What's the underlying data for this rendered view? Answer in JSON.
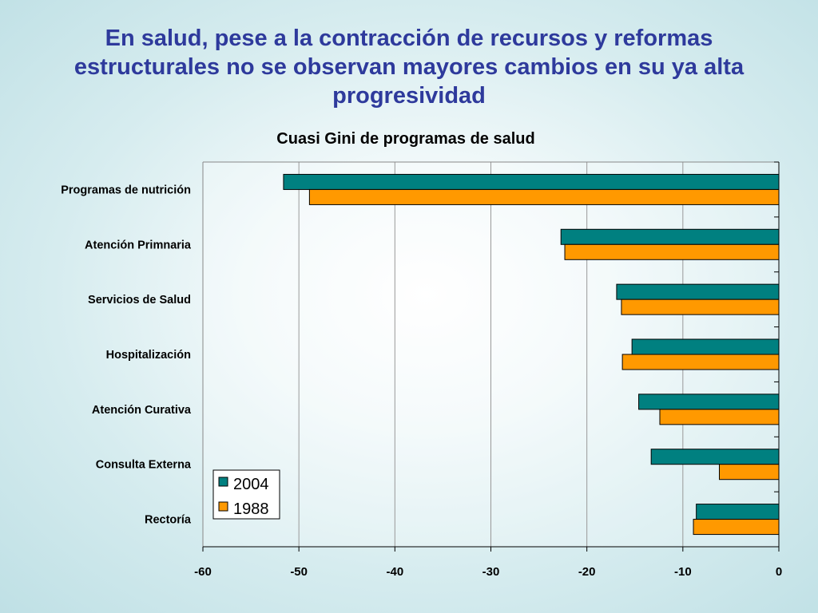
{
  "slide": {
    "title_lines": [
      "En salud, pese a la contracción de recursos y reformas",
      "estructurales no se observan mayores cambios en su ya alta",
      "progresividad"
    ]
  },
  "colors": {
    "title": "#2e3a9c",
    "series_2004": "#008080",
    "series_1988": "#ff9900"
  },
  "chart_data": {
    "type": "bar",
    "orientation": "horizontal",
    "title": "Cuasi Gini de programas de salud",
    "categories": [
      "Programas de nutrición",
      "Atención Primnaria",
      "Servicios de Salud",
      "Hospitalización",
      "Atención Curativa",
      "Consulta Externa",
      "Rectoría"
    ],
    "series": [
      {
        "name": "2004",
        "values": [
          -51.6,
          -22.7,
          -16.9,
          -15.3,
          -14.6,
          -13.3,
          -8.6
        ]
      },
      {
        "name": "1988",
        "values": [
          -48.9,
          -22.3,
          -16.4,
          -16.3,
          -12.4,
          -6.2,
          -8.9
        ]
      }
    ],
    "xlim": [
      -60,
      0
    ],
    "xticks": [
      -60,
      -50,
      -40,
      -30,
      -20,
      -10,
      0
    ],
    "xlabel": "",
    "ylabel": "",
    "grid": true,
    "legend_position": "bottom-left"
  }
}
